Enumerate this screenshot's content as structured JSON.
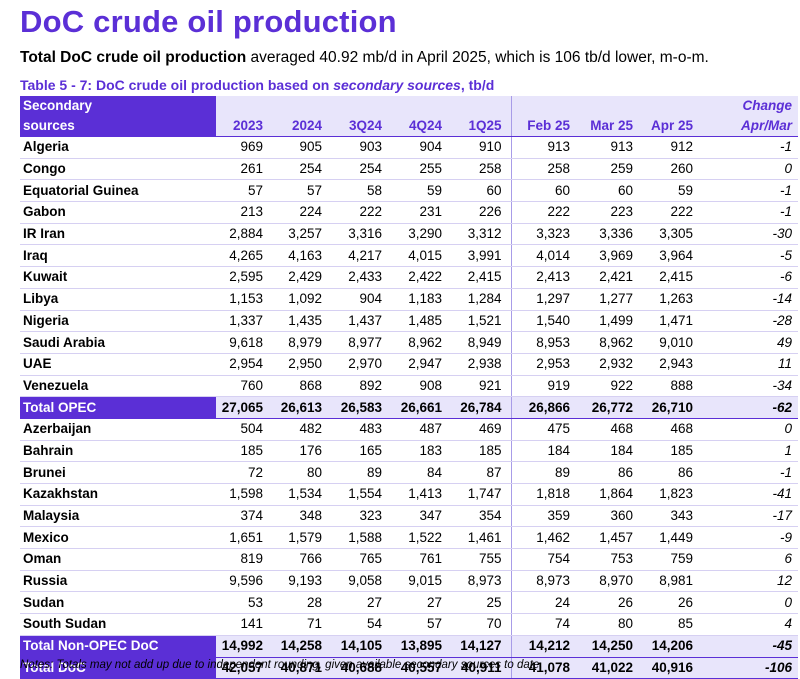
{
  "title": "DoC crude oil production",
  "subtitle": {
    "bold": "Total DoC crude oil production",
    "rest": " averaged 40.92 mb/d in April 2025, which is 106 tb/d lower, m-o-m."
  },
  "table_caption": {
    "prefix": "Table 5 - 7: DoC crude oil production based on ",
    "italic": "secondary sources",
    "suffix": ", tb/d"
  },
  "header": {
    "source_line1": "Secondary",
    "source_line2": "sources",
    "change_line1": "Change",
    "change_line2": "Apr/Mar",
    "columns": [
      "2023",
      "2024",
      "3Q24",
      "4Q24",
      "1Q25",
      "Feb 25",
      "Mar 25",
      "Apr 25"
    ]
  },
  "opec_rows": [
    {
      "name": "Algeria",
      "values": [
        "969",
        "905",
        "903",
        "904",
        "910",
        "913",
        "913",
        "912"
      ],
      "change": "-1"
    },
    {
      "name": "Congo",
      "values": [
        "261",
        "254",
        "254",
        "255",
        "258",
        "258",
        "259",
        "260"
      ],
      "change": "0"
    },
    {
      "name": "Equatorial Guinea",
      "values": [
        "57",
        "57",
        "58",
        "59",
        "60",
        "60",
        "60",
        "59"
      ],
      "change": "-1"
    },
    {
      "name": "Gabon",
      "values": [
        "213",
        "224",
        "222",
        "231",
        "226",
        "222",
        "223",
        "222"
      ],
      "change": "-1"
    },
    {
      "name": "IR Iran",
      "values": [
        "2,884",
        "3,257",
        "3,316",
        "3,290",
        "3,312",
        "3,323",
        "3,336",
        "3,305"
      ],
      "change": "-30"
    },
    {
      "name": "Iraq",
      "values": [
        "4,265",
        "4,163",
        "4,217",
        "4,015",
        "3,991",
        "4,014",
        "3,969",
        "3,964"
      ],
      "change": "-5"
    },
    {
      "name": "Kuwait",
      "values": [
        "2,595",
        "2,429",
        "2,433",
        "2,422",
        "2,415",
        "2,413",
        "2,421",
        "2,415"
      ],
      "change": "-6"
    },
    {
      "name": "Libya",
      "values": [
        "1,153",
        "1,092",
        "904",
        "1,183",
        "1,284",
        "1,297",
        "1,277",
        "1,263"
      ],
      "change": "-14"
    },
    {
      "name": "Nigeria",
      "values": [
        "1,337",
        "1,435",
        "1,437",
        "1,485",
        "1,521",
        "1,540",
        "1,499",
        "1,471"
      ],
      "change": "-28"
    },
    {
      "name": "Saudi Arabia",
      "values": [
        "9,618",
        "8,979",
        "8,977",
        "8,962",
        "8,949",
        "8,953",
        "8,962",
        "9,010"
      ],
      "change": "49"
    },
    {
      "name": "UAE",
      "values": [
        "2,954",
        "2,950",
        "2,970",
        "2,947",
        "2,938",
        "2,953",
        "2,932",
        "2,943"
      ],
      "change": "11"
    },
    {
      "name": "Venezuela",
      "values": [
        "760",
        "868",
        "892",
        "908",
        "921",
        "919",
        "922",
        "888"
      ],
      "change": "-34"
    }
  ],
  "total_opec": {
    "name": "Total  OPEC",
    "values": [
      "27,065",
      "26,613",
      "26,583",
      "26,661",
      "26,784",
      "26,866",
      "26,772",
      "26,710"
    ],
    "change": "-62"
  },
  "non_opec_rows": [
    {
      "name": "Azerbaijan",
      "values": [
        "504",
        "482",
        "483",
        "487",
        "469",
        "475",
        "468",
        "468"
      ],
      "change": "0"
    },
    {
      "name": "Bahrain",
      "values": [
        "185",
        "176",
        "165",
        "183",
        "185",
        "184",
        "184",
        "185"
      ],
      "change": "1"
    },
    {
      "name": "Brunei",
      "values": [
        "72",
        "80",
        "89",
        "84",
        "87",
        "89",
        "86",
        "86"
      ],
      "change": "-1"
    },
    {
      "name": "Kazakhstan",
      "values": [
        "1,598",
        "1,534",
        "1,554",
        "1,413",
        "1,747",
        "1,818",
        "1,864",
        "1,823"
      ],
      "change": "-41"
    },
    {
      "name": "Malaysia",
      "values": [
        "374",
        "348",
        "323",
        "347",
        "354",
        "359",
        "360",
        "343"
      ],
      "change": "-17"
    },
    {
      "name": "Mexico",
      "values": [
        "1,651",
        "1,579",
        "1,588",
        "1,522",
        "1,461",
        "1,462",
        "1,457",
        "1,449"
      ],
      "change": "-9"
    },
    {
      "name": "Oman",
      "values": [
        "819",
        "766",
        "765",
        "761",
        "755",
        "754",
        "753",
        "759"
      ],
      "change": "6"
    },
    {
      "name": "Russia",
      "values": [
        "9,596",
        "9,193",
        "9,058",
        "9,015",
        "8,973",
        "8,973",
        "8,970",
        "8,981"
      ],
      "change": "12"
    },
    {
      "name": "Sudan",
      "values": [
        "53",
        "28",
        "27",
        "27",
        "25",
        "24",
        "26",
        "26"
      ],
      "change": "0"
    },
    {
      "name": "South Sudan",
      "values": [
        "141",
        "71",
        "54",
        "57",
        "70",
        "74",
        "80",
        "85"
      ],
      "change": "4"
    }
  ],
  "total_non_opec": {
    "name": "Total Non-OPEC DoC",
    "values": [
      "14,992",
      "14,258",
      "14,105",
      "13,895",
      "14,127",
      "14,212",
      "14,250",
      "14,206"
    ],
    "change": "-45"
  },
  "total_doc": {
    "name": "Total DoC",
    "values": [
      "42,057",
      "40,871",
      "40,688",
      "40,557",
      "40,911",
      "41,078",
      "41,022",
      "40,916"
    ],
    "change": "-106"
  },
  "notes": "Notes: Totals may not add up due to independent rounding, given available secondary sources to date.",
  "colors": {
    "accent": "#5b2fd6",
    "header_bg": "#e8e5fb"
  }
}
